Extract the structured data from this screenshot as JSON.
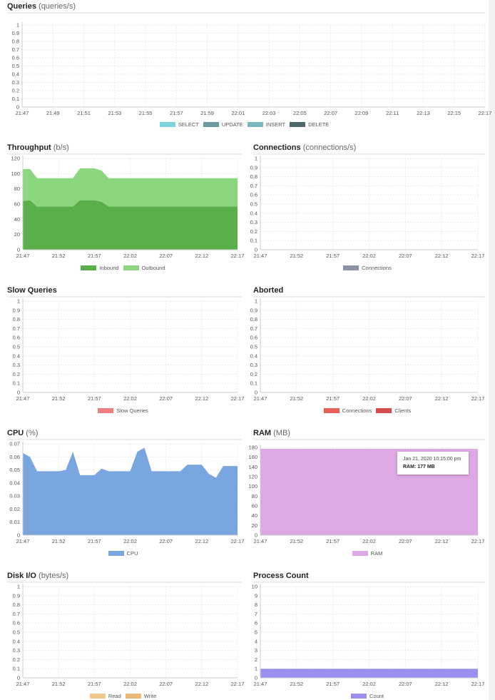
{
  "chart_data": [
    {
      "id": "queries",
      "type": "area",
      "title": "Queries",
      "unit": "(queries/s)",
      "xlim": [
        "21:47",
        "22:17"
      ],
      "x_ticks": [
        "21:47",
        "21:49",
        "21:51",
        "21:53",
        "21:55",
        "21:57",
        "21:59",
        "22:01",
        "22:03",
        "22:05",
        "22:07",
        "22:09",
        "22:11",
        "22:13",
        "22:15",
        "22:17"
      ],
      "ylim": [
        0,
        1
      ],
      "y_ticks": [
        "0",
        "0.1",
        "0.2",
        "0.3",
        "0.4",
        "0.5",
        "0.6",
        "0.7",
        "0.8",
        "0.9",
        "1"
      ],
      "grid": true,
      "legend": "bottom",
      "series": [
        {
          "name": "SELECT",
          "color": "#7fd3df",
          "values": []
        },
        {
          "name": "UPDATE",
          "color": "#6a9aa0",
          "values": []
        },
        {
          "name": "INSERT",
          "color": "#7ab8c0",
          "values": []
        },
        {
          "name": "DELETE",
          "color": "#4e6a6e",
          "values": []
        }
      ]
    },
    {
      "id": "throughput",
      "type": "area",
      "stacked": true,
      "title": "Throughput",
      "unit": "(b/s)",
      "xlim": [
        "21:47",
        "22:17"
      ],
      "x_ticks": [
        "21:47",
        "21:52",
        "21:57",
        "22:02",
        "22:07",
        "22:12",
        "22:17"
      ],
      "ylim": [
        0,
        120
      ],
      "y_ticks": [
        "0",
        "20",
        "40",
        "60",
        "80",
        "100",
        "120"
      ],
      "grid": true,
      "legend": "bottom",
      "x": [
        "21:47",
        "21:48",
        "21:49",
        "21:50",
        "21:51",
        "21:52",
        "21:53",
        "21:54",
        "21:55",
        "21:56",
        "21:57",
        "21:58",
        "21:59",
        "22:00",
        "22:01",
        "22:02",
        "22:03",
        "22:04",
        "22:05",
        "22:06",
        "22:07",
        "22:08",
        "22:09",
        "22:10",
        "22:11",
        "22:12",
        "22:13",
        "22:14",
        "22:15",
        "22:16",
        "22:17"
      ],
      "series": [
        {
          "name": "Inbound",
          "color": "#5aaf4a",
          "values": [
            64,
            65,
            57,
            57,
            57,
            57,
            57,
            57,
            65,
            65,
            65,
            63,
            57,
            57,
            57,
            57,
            57,
            57,
            57,
            57,
            57,
            57,
            57,
            57,
            57,
            57,
            57,
            57,
            57,
            57,
            57
          ]
        },
        {
          "name": "Outbound",
          "color": "#8cd67f",
          "values": [
            42,
            41,
            37,
            37,
            37,
            37,
            37,
            37,
            42,
            42,
            42,
            41,
            37,
            37,
            37,
            37,
            37,
            37,
            37,
            37,
            37,
            37,
            37,
            37,
            37,
            37,
            37,
            37,
            37,
            37,
            37
          ]
        }
      ]
    },
    {
      "id": "connections",
      "type": "area",
      "title": "Connections",
      "unit": "(connections/s)",
      "xlim": [
        "21:47",
        "22:17"
      ],
      "x_ticks": [
        "21:47",
        "21:52",
        "21:57",
        "22:02",
        "22:07",
        "22:12",
        "22:17"
      ],
      "ylim": [
        0,
        1
      ],
      "y_ticks": [
        "0",
        "0.1",
        "0.2",
        "0.3",
        "0.4",
        "0.5",
        "0.6",
        "0.7",
        "0.8",
        "0.9",
        "1"
      ],
      "grid": true,
      "legend": "bottom",
      "series": [
        {
          "name": "Connections",
          "color": "#8a93a8",
          "values": []
        }
      ]
    },
    {
      "id": "slow-queries",
      "type": "area",
      "title": "Slow Queries",
      "unit": "",
      "xlim": [
        "21:47",
        "22:17"
      ],
      "x_ticks": [
        "21:47",
        "21:52",
        "21:57",
        "22:02",
        "22:07",
        "22:12",
        "22:17"
      ],
      "ylim": [
        0,
        1
      ],
      "y_ticks": [
        "0",
        "0.1",
        "0.2",
        "0.3",
        "0.4",
        "0.5",
        "0.6",
        "0.7",
        "0.8",
        "0.9",
        "1"
      ],
      "grid": true,
      "legend": "bottom",
      "series": [
        {
          "name": "Slow Queries",
          "color": "#f08080",
          "values": []
        }
      ]
    },
    {
      "id": "aborted",
      "type": "area",
      "title": "Aborted",
      "unit": "",
      "xlim": [
        "21:47",
        "22:17"
      ],
      "x_ticks": [
        "21:47",
        "21:52",
        "21:57",
        "22:02",
        "22:07",
        "22:12",
        "22:17"
      ],
      "ylim": [
        0,
        1
      ],
      "y_ticks": [
        "0",
        "0.1",
        "0.2",
        "0.3",
        "0.4",
        "0.5",
        "0.6",
        "0.7",
        "0.8",
        "0.9",
        "1"
      ],
      "grid": true,
      "legend": "bottom",
      "series": [
        {
          "name": "Connections",
          "color": "#e8605a",
          "values": []
        },
        {
          "name": "Clients",
          "color": "#d44d4d",
          "values": []
        }
      ]
    },
    {
      "id": "cpu",
      "type": "area",
      "title": "CPU",
      "unit": "(%)",
      "xlim": [
        "21:47",
        "22:17"
      ],
      "x_ticks": [
        "21:47",
        "21:52",
        "21:57",
        "22:02",
        "22:07",
        "22:12",
        "22:17"
      ],
      "ylim": [
        0,
        0.07
      ],
      "y_ticks": [
        "0",
        "0.01",
        "0.02",
        "0.03",
        "0.04",
        "0.05",
        "0.06",
        "0.07"
      ],
      "grid": true,
      "legend": "bottom",
      "x": [
        "21:47",
        "21:48",
        "21:49",
        "21:50",
        "21:51",
        "21:52",
        "21:53",
        "21:54",
        "21:55",
        "21:56",
        "21:57",
        "21:58",
        "21:59",
        "22:00",
        "22:01",
        "22:02",
        "22:03",
        "22:04",
        "22:05",
        "22:06",
        "22:07",
        "22:08",
        "22:09",
        "22:10",
        "22:11",
        "22:12",
        "22:13",
        "22:14",
        "22:15",
        "22:16",
        "22:17"
      ],
      "series": [
        {
          "name": "CPU",
          "color": "#7aa6e0",
          "values": [
            0.063,
            0.06,
            0.049,
            0.049,
            0.049,
            0.049,
            0.05,
            0.064,
            0.046,
            0.046,
            0.046,
            0.051,
            0.049,
            0.049,
            0.049,
            0.049,
            0.064,
            0.067,
            0.049,
            0.049,
            0.049,
            0.049,
            0.049,
            0.054,
            0.054,
            0.054,
            0.047,
            0.044,
            0.053,
            0.053,
            0.053
          ]
        }
      ]
    },
    {
      "id": "ram",
      "type": "area",
      "title": "RAM",
      "unit": "(MB)",
      "xlim": [
        "21:47",
        "22:17"
      ],
      "x_ticks": [
        "21:47",
        "21:52",
        "21:57",
        "22:02",
        "22:07",
        "22:12",
        "22:17"
      ],
      "ylim": [
        0,
        180
      ],
      "y_ticks": [
        "0",
        "20",
        "40",
        "60",
        "80",
        "100",
        "120",
        "140",
        "160",
        "180"
      ],
      "grid": true,
      "legend": "bottom",
      "x": [
        "21:47",
        "22:17"
      ],
      "series": [
        {
          "name": "RAM",
          "color": "#dda8e3",
          "values": [
            177,
            177
          ]
        }
      ],
      "tooltip": {
        "date": "Jan 21, 2020 10:15:00 pm",
        "value": "RAM: 177 MB"
      }
    },
    {
      "id": "disk-io",
      "type": "area",
      "title": "Disk I/O",
      "unit": "(bytes/s)",
      "xlim": [
        "21:47",
        "22:17"
      ],
      "x_ticks": [
        "21:47",
        "21:52",
        "21:57",
        "22:02",
        "22:07",
        "22:12",
        "22:17"
      ],
      "ylim": [
        0,
        1
      ],
      "y_ticks": [
        "0",
        "0.1",
        "0.2",
        "0.3",
        "0.4",
        "0.5",
        "0.6",
        "0.7",
        "0.8",
        "0.9",
        "1"
      ],
      "grid": true,
      "legend": "bottom",
      "series": [
        {
          "name": "Read",
          "color": "#f0c890",
          "values": []
        },
        {
          "name": "Write",
          "color": "#e8b878",
          "values": []
        }
      ]
    },
    {
      "id": "process-count",
      "type": "area",
      "title": "Process Count",
      "unit": "",
      "xlim": [
        "21:47",
        "22:17"
      ],
      "x_ticks": [
        "21:47",
        "21:52",
        "21:57",
        "22:02",
        "22:07",
        "22:12",
        "22:17"
      ],
      "ylim": [
        0,
        10
      ],
      "y_ticks": [
        "0",
        "1",
        "2",
        "3",
        "4",
        "5",
        "6",
        "7",
        "8",
        "9",
        "10"
      ],
      "grid": true,
      "legend": "bottom",
      "x": [
        "21:47",
        "22:17"
      ],
      "series": [
        {
          "name": "Count",
          "color": "#9b8ff0",
          "values": [
            1,
            1
          ]
        }
      ]
    }
  ]
}
